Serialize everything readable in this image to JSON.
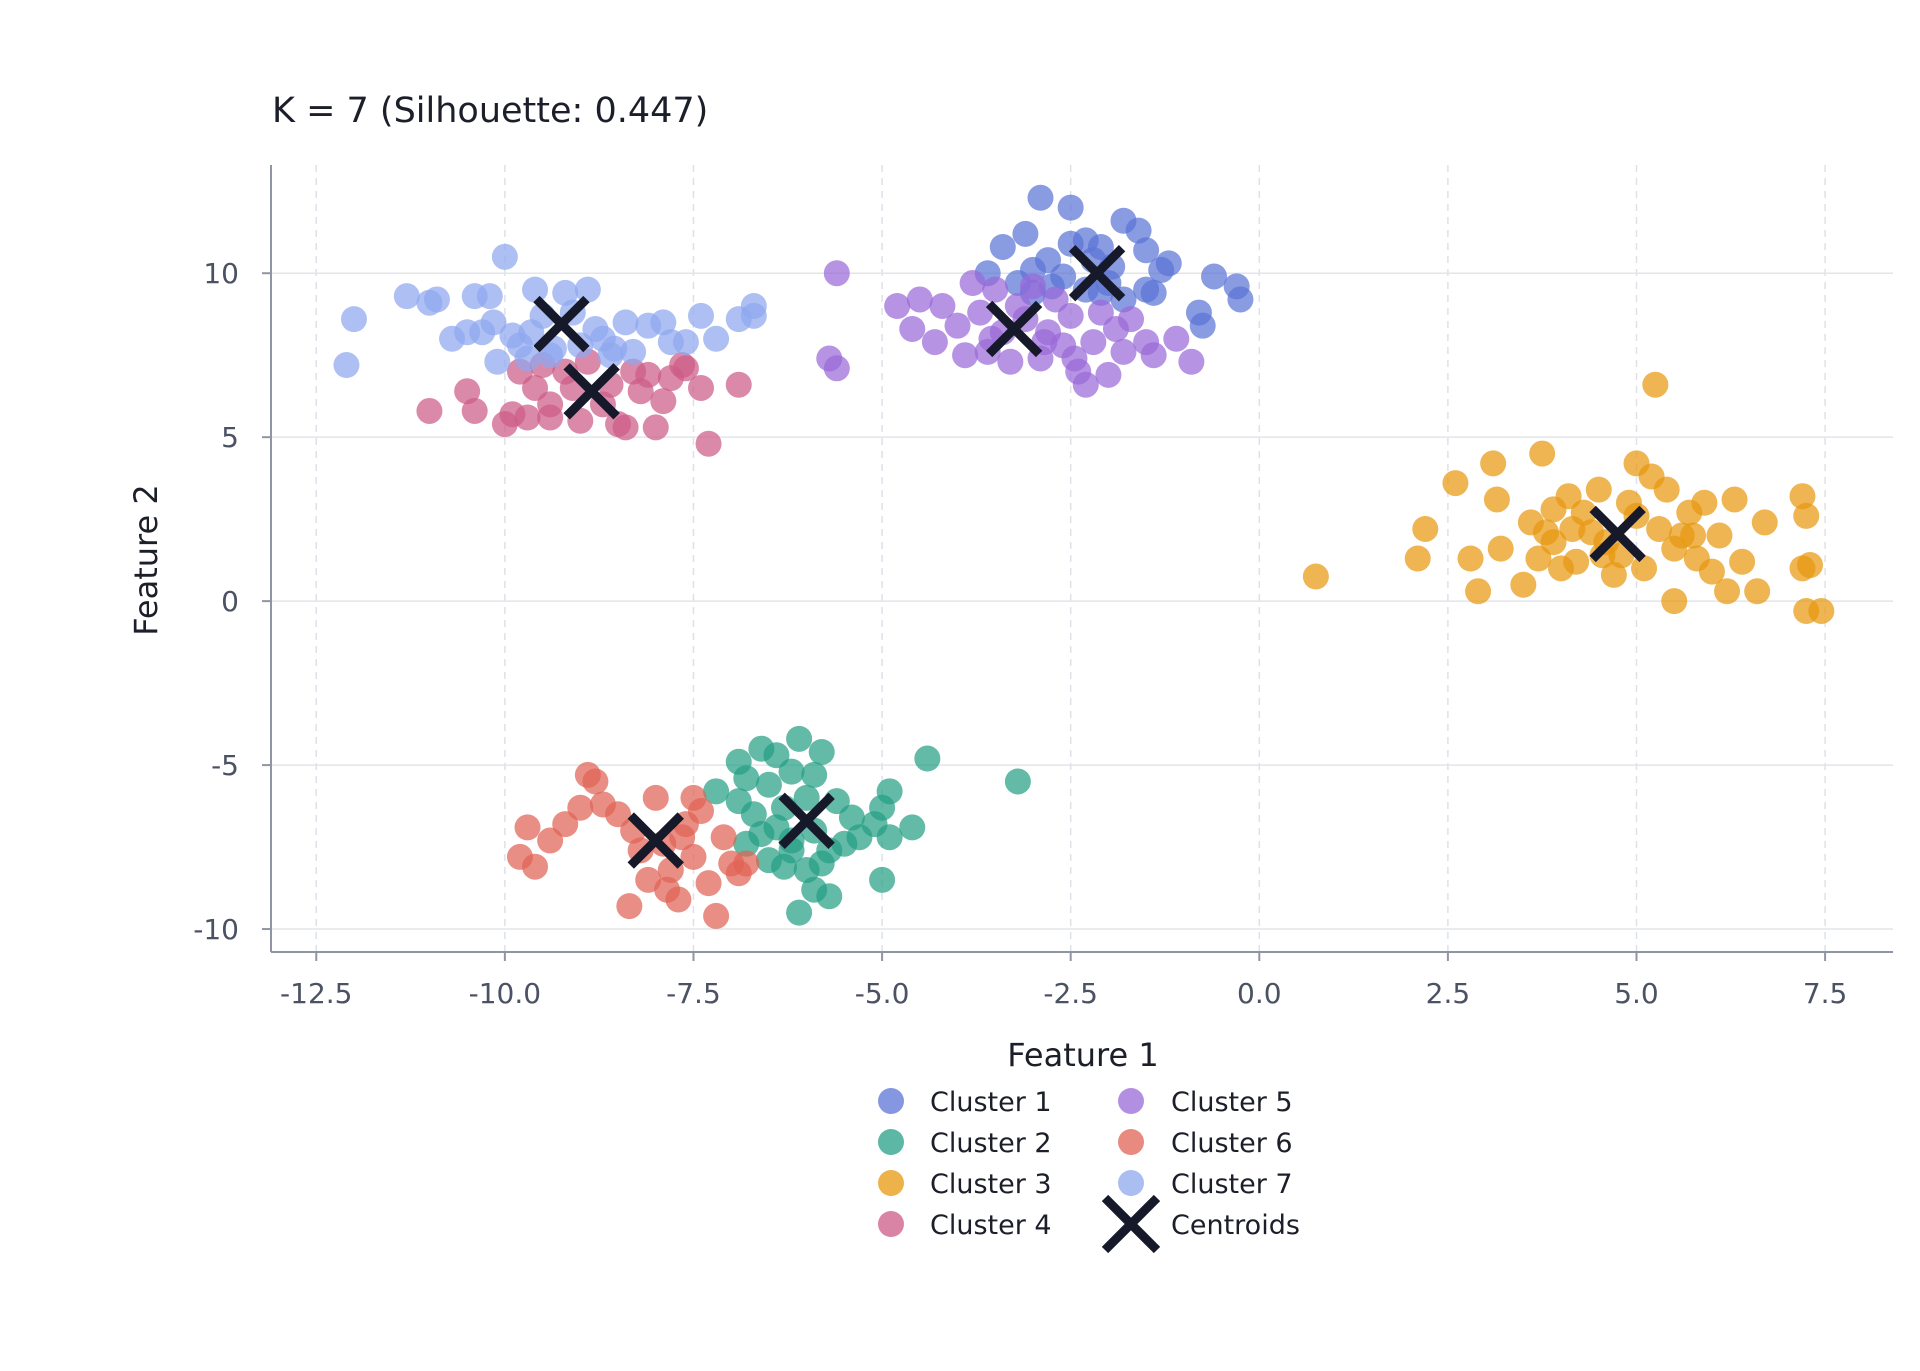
{
  "chart_data": {
    "type": "scatter",
    "title": "K = 7 (Silhouette: 0.447)",
    "xlabel": "Feature 1",
    "ylabel": "Feature 2",
    "xlim": [
      -13.1,
      8.4
    ],
    "ylim": [
      -10.7,
      13.3
    ],
    "xticks": [
      -12.5,
      -10.0,
      -7.5,
      -5.0,
      -2.5,
      0.0,
      2.5,
      5.0,
      7.5
    ],
    "xtick_labels": [
      "-12.5",
      "-10.0",
      "-7.5",
      "-5.0",
      "-2.5",
      "0.0",
      "2.5",
      "5.0",
      "7.5"
    ],
    "yticks": [
      10,
      5,
      0,
      -5,
      -10
    ],
    "ytick_labels": [
      "10",
      "5",
      "0",
      "-5",
      "-10"
    ],
    "grid": true,
    "legend_position": "bottom-center",
    "series": [
      {
        "name": "Cluster 1",
        "color": "#5b74d6",
        "centroid": [
          -2.15,
          10.0
        ],
        "points": [
          [
            -3.6,
            10.0
          ],
          [
            -3.4,
            10.8
          ],
          [
            -3.1,
            11.2
          ],
          [
            -2.9,
            12.3
          ],
          [
            -2.5,
            12.0
          ],
          [
            -2.3,
            11.0
          ],
          [
            -2.1,
            10.8
          ],
          [
            -1.8,
            11.6
          ],
          [
            -1.6,
            11.3
          ],
          [
            -1.5,
            10.7
          ],
          [
            -1.3,
            10.1
          ],
          [
            -1.2,
            10.3
          ],
          [
            -0.6,
            9.9
          ],
          [
            -0.3,
            9.6
          ],
          [
            -0.25,
            9.2
          ],
          [
            -0.8,
            8.8
          ],
          [
            -0.75,
            8.4
          ],
          [
            -1.5,
            9.5
          ],
          [
            -1.8,
            9.2
          ],
          [
            -2.0,
            9.7
          ],
          [
            -2.3,
            9.5
          ],
          [
            -2.6,
            9.9
          ],
          [
            -2.8,
            10.4
          ],
          [
            -3.0,
            10.1
          ],
          [
            -3.2,
            9.7
          ],
          [
            -3.0,
            9.4
          ],
          [
            -2.5,
            10.9
          ],
          [
            -2.2,
            10.4
          ],
          [
            -1.95,
            10.2
          ],
          [
            -1.4,
            9.4
          ],
          [
            -2.75,
            9.6
          ],
          [
            -2.1,
            9.4
          ]
        ]
      },
      {
        "name": "Cluster 2",
        "color": "#26a085",
        "centroid": [
          -6.0,
          -6.7
        ],
        "points": [
          [
            -6.9,
            -4.9
          ],
          [
            -6.6,
            -4.5
          ],
          [
            -6.4,
            -4.7
          ],
          [
            -6.1,
            -4.2
          ],
          [
            -5.8,
            -4.6
          ],
          [
            -6.2,
            -5.2
          ],
          [
            -5.9,
            -5.3
          ],
          [
            -6.5,
            -5.6
          ],
          [
            -6.8,
            -5.4
          ],
          [
            -7.2,
            -5.8
          ],
          [
            -6.9,
            -6.1
          ],
          [
            -6.7,
            -6.5
          ],
          [
            -6.4,
            -6.9
          ],
          [
            -6.2,
            -7.3
          ],
          [
            -5.9,
            -7.0
          ],
          [
            -5.7,
            -7.6
          ],
          [
            -5.5,
            -7.4
          ],
          [
            -5.4,
            -6.6
          ],
          [
            -5.6,
            -6.1
          ],
          [
            -6.0,
            -6.0
          ],
          [
            -6.3,
            -6.3
          ],
          [
            -6.6,
            -7.1
          ],
          [
            -6.8,
            -7.4
          ],
          [
            -6.5,
            -7.9
          ],
          [
            -6.3,
            -8.1
          ],
          [
            -6.0,
            -8.2
          ],
          [
            -5.9,
            -8.8
          ],
          [
            -6.1,
            -9.5
          ],
          [
            -5.7,
            -9.0
          ],
          [
            -5.0,
            -6.3
          ],
          [
            -4.9,
            -5.8
          ],
          [
            -4.6,
            -6.9
          ],
          [
            -4.4,
            -4.8
          ],
          [
            -3.2,
            -5.5
          ],
          [
            -4.9,
            -7.2
          ],
          [
            -5.0,
            -8.5
          ],
          [
            -5.8,
            -8.0
          ],
          [
            -6.2,
            -7.6
          ],
          [
            -5.1,
            -6.8
          ],
          [
            -5.3,
            -7.2
          ]
        ]
      },
      {
        "name": "Cluster 3",
        "color": "#e8980f",
        "centroid": [
          4.75,
          2.05
        ],
        "points": [
          [
            0.75,
            0.75
          ],
          [
            2.1,
            1.3
          ],
          [
            2.2,
            2.2
          ],
          [
            2.6,
            3.6
          ],
          [
            2.8,
            1.3
          ],
          [
            2.9,
            0.3
          ],
          [
            3.1,
            4.2
          ],
          [
            3.15,
            3.1
          ],
          [
            3.2,
            1.6
          ],
          [
            3.5,
            0.5
          ],
          [
            3.6,
            2.4
          ],
          [
            3.7,
            1.3
          ],
          [
            3.75,
            4.5
          ],
          [
            3.8,
            2.1
          ],
          [
            3.9,
            2.8
          ],
          [
            4.0,
            1.0
          ],
          [
            4.1,
            3.2
          ],
          [
            4.2,
            1.2
          ],
          [
            4.3,
            2.7
          ],
          [
            4.4,
            2.1
          ],
          [
            4.5,
            3.4
          ],
          [
            4.6,
            1.8
          ],
          [
            4.7,
            0.8
          ],
          [
            4.8,
            1.4
          ],
          [
            4.9,
            3.0
          ],
          [
            5.0,
            2.6
          ],
          [
            5.0,
            4.2
          ],
          [
            5.1,
            1.0
          ],
          [
            5.2,
            3.8
          ],
          [
            5.25,
            6.6
          ],
          [
            5.3,
            2.2
          ],
          [
            5.4,
            3.4
          ],
          [
            5.5,
            1.6
          ],
          [
            5.5,
            0.0
          ],
          [
            5.7,
            2.7
          ],
          [
            5.8,
            1.3
          ],
          [
            5.9,
            3.0
          ],
          [
            6.0,
            0.9
          ],
          [
            6.1,
            2.0
          ],
          [
            6.2,
            0.3
          ],
          [
            6.3,
            3.1
          ],
          [
            6.4,
            1.2
          ],
          [
            6.6,
            0.3
          ],
          [
            6.7,
            2.4
          ],
          [
            7.2,
            3.2
          ],
          [
            7.25,
            2.6
          ],
          [
            7.2,
            1.0
          ],
          [
            7.3,
            1.1
          ],
          [
            7.25,
            -0.3
          ],
          [
            7.45,
            -0.3
          ],
          [
            3.9,
            1.8
          ],
          [
            4.15,
            2.2
          ],
          [
            5.6,
            2.0
          ],
          [
            4.55,
            1.4
          ],
          [
            5.75,
            2.0
          ]
        ]
      },
      {
        "name": "Cluster 4",
        "color": "#cd5b87",
        "centroid": [
          -8.85,
          6.4
        ],
        "points": [
          [
            -11.0,
            5.8
          ],
          [
            -10.5,
            6.4
          ],
          [
            -10.4,
            5.8
          ],
          [
            -10.0,
            5.4
          ],
          [
            -9.9,
            5.7
          ],
          [
            -9.8,
            7.0
          ],
          [
            -9.7,
            5.6
          ],
          [
            -9.6,
            6.5
          ],
          [
            -9.5,
            7.2
          ],
          [
            -9.4,
            6.0
          ],
          [
            -9.2,
            7.0
          ],
          [
            -9.1,
            6.5
          ],
          [
            -9.0,
            5.5
          ],
          [
            -8.9,
            7.3
          ],
          [
            -8.7,
            6.0
          ],
          [
            -8.6,
            6.6
          ],
          [
            -8.5,
            5.4
          ],
          [
            -8.3,
            7.0
          ],
          [
            -8.2,
            6.4
          ],
          [
            -8.0,
            5.3
          ],
          [
            -7.9,
            6.1
          ],
          [
            -7.8,
            6.8
          ],
          [
            -7.6,
            7.1
          ],
          [
            -7.4,
            6.5
          ],
          [
            -7.3,
            4.8
          ],
          [
            -6.9,
            6.6
          ],
          [
            -8.4,
            5.3
          ],
          [
            -9.4,
            5.6
          ],
          [
            -8.1,
            6.9
          ],
          [
            -7.65,
            7.2
          ]
        ]
      },
      {
        "name": "Cluster 5",
        "color": "#9a6ad8",
        "centroid": [
          -3.25,
          8.3
        ],
        "points": [
          [
            -5.6,
            10.0
          ],
          [
            -5.7,
            7.4
          ],
          [
            -5.6,
            7.1
          ],
          [
            -4.8,
            9.0
          ],
          [
            -4.6,
            8.3
          ],
          [
            -4.5,
            9.2
          ],
          [
            -4.3,
            7.9
          ],
          [
            -4.2,
            9.0
          ],
          [
            -4.0,
            8.4
          ],
          [
            -3.9,
            7.5
          ],
          [
            -3.8,
            9.7
          ],
          [
            -3.7,
            8.8
          ],
          [
            -3.6,
            7.6
          ],
          [
            -3.5,
            9.5
          ],
          [
            -3.4,
            8.2
          ],
          [
            -3.3,
            7.3
          ],
          [
            -3.2,
            9.0
          ],
          [
            -3.1,
            8.6
          ],
          [
            -3.0,
            9.6
          ],
          [
            -2.9,
            7.4
          ],
          [
            -2.8,
            8.2
          ],
          [
            -2.7,
            9.2
          ],
          [
            -2.6,
            7.8
          ],
          [
            -2.5,
            8.7
          ],
          [
            -2.4,
            7.0
          ],
          [
            -2.3,
            6.6
          ],
          [
            -2.2,
            7.9
          ],
          [
            -2.1,
            8.8
          ],
          [
            -2.0,
            6.9
          ],
          [
            -1.9,
            8.3
          ],
          [
            -1.8,
            7.6
          ],
          [
            -1.7,
            8.6
          ],
          [
            -1.5,
            7.9
          ],
          [
            -1.4,
            7.5
          ],
          [
            -1.1,
            8.0
          ],
          [
            -0.9,
            7.3
          ],
          [
            -2.45,
            7.4
          ],
          [
            -3.55,
            8.0
          ],
          [
            -2.85,
            7.9
          ]
        ]
      },
      {
        "name": "Cluster 6",
        "color": "#e06354",
        "centroid": [
          -8.0,
          -7.3
        ],
        "points": [
          [
            -9.8,
            -7.8
          ],
          [
            -9.7,
            -6.9
          ],
          [
            -9.6,
            -8.1
          ],
          [
            -9.4,
            -7.3
          ],
          [
            -9.2,
            -6.8
          ],
          [
            -9.0,
            -6.3
          ],
          [
            -8.9,
            -5.3
          ],
          [
            -8.8,
            -5.5
          ],
          [
            -8.7,
            -6.2
          ],
          [
            -8.5,
            -6.5
          ],
          [
            -8.3,
            -7.0
          ],
          [
            -8.2,
            -7.6
          ],
          [
            -8.1,
            -8.5
          ],
          [
            -8.0,
            -6.0
          ],
          [
            -7.9,
            -7.4
          ],
          [
            -7.8,
            -8.2
          ],
          [
            -7.7,
            -9.1
          ],
          [
            -7.6,
            -6.8
          ],
          [
            -7.5,
            -7.8
          ],
          [
            -7.4,
            -6.4
          ],
          [
            -7.3,
            -8.6
          ],
          [
            -7.2,
            -9.6
          ],
          [
            -7.1,
            -7.2
          ],
          [
            -7.0,
            -8.0
          ],
          [
            -6.9,
            -8.3
          ],
          [
            -6.8,
            -8.0
          ],
          [
            -7.5,
            -6.0
          ],
          [
            -8.35,
            -9.3
          ],
          [
            -7.85,
            -8.8
          ],
          [
            -7.65,
            -7.2
          ]
        ]
      },
      {
        "name": "Cluster 7",
        "color": "#8fa8ee",
        "centroid": [
          -9.25,
          8.45
        ],
        "points": [
          [
            -12.1,
            7.2
          ],
          [
            -12.0,
            8.6
          ],
          [
            -11.3,
            9.3
          ],
          [
            -11.0,
            9.1
          ],
          [
            -10.9,
            9.2
          ],
          [
            -10.7,
            8.0
          ],
          [
            -10.5,
            8.2
          ],
          [
            -10.4,
            9.3
          ],
          [
            -10.3,
            8.2
          ],
          [
            -10.2,
            9.3
          ],
          [
            -10.15,
            8.5
          ],
          [
            -10.1,
            7.3
          ],
          [
            -10.0,
            10.5
          ],
          [
            -9.9,
            8.1
          ],
          [
            -9.8,
            7.8
          ],
          [
            -9.7,
            7.4
          ],
          [
            -9.6,
            9.5
          ],
          [
            -9.5,
            8.7
          ],
          [
            -9.4,
            7.5
          ],
          [
            -9.2,
            9.4
          ],
          [
            -9.1,
            8.8
          ],
          [
            -9.0,
            7.8
          ],
          [
            -8.9,
            9.5
          ],
          [
            -8.8,
            8.3
          ],
          [
            -8.7,
            8.0
          ],
          [
            -8.6,
            7.5
          ],
          [
            -8.4,
            8.5
          ],
          [
            -8.3,
            7.6
          ],
          [
            -8.1,
            8.4
          ],
          [
            -7.9,
            8.5
          ],
          [
            -7.8,
            7.9
          ],
          [
            -7.6,
            7.9
          ],
          [
            -7.4,
            8.7
          ],
          [
            -7.2,
            8.0
          ],
          [
            -6.9,
            8.6
          ],
          [
            -6.7,
            9.0
          ],
          [
            -6.7,
            8.7
          ],
          [
            -9.65,
            8.2
          ],
          [
            -8.55,
            7.7
          ],
          [
            -9.35,
            7.7
          ]
        ]
      }
    ],
    "legend": {
      "items": [
        "Cluster 1",
        "Cluster 2",
        "Cluster 3",
        "Cluster 4",
        "Cluster 5",
        "Cluster 6",
        "Cluster 7",
        "Centroids"
      ],
      "centroid_marker_color": "#15192a"
    }
  }
}
